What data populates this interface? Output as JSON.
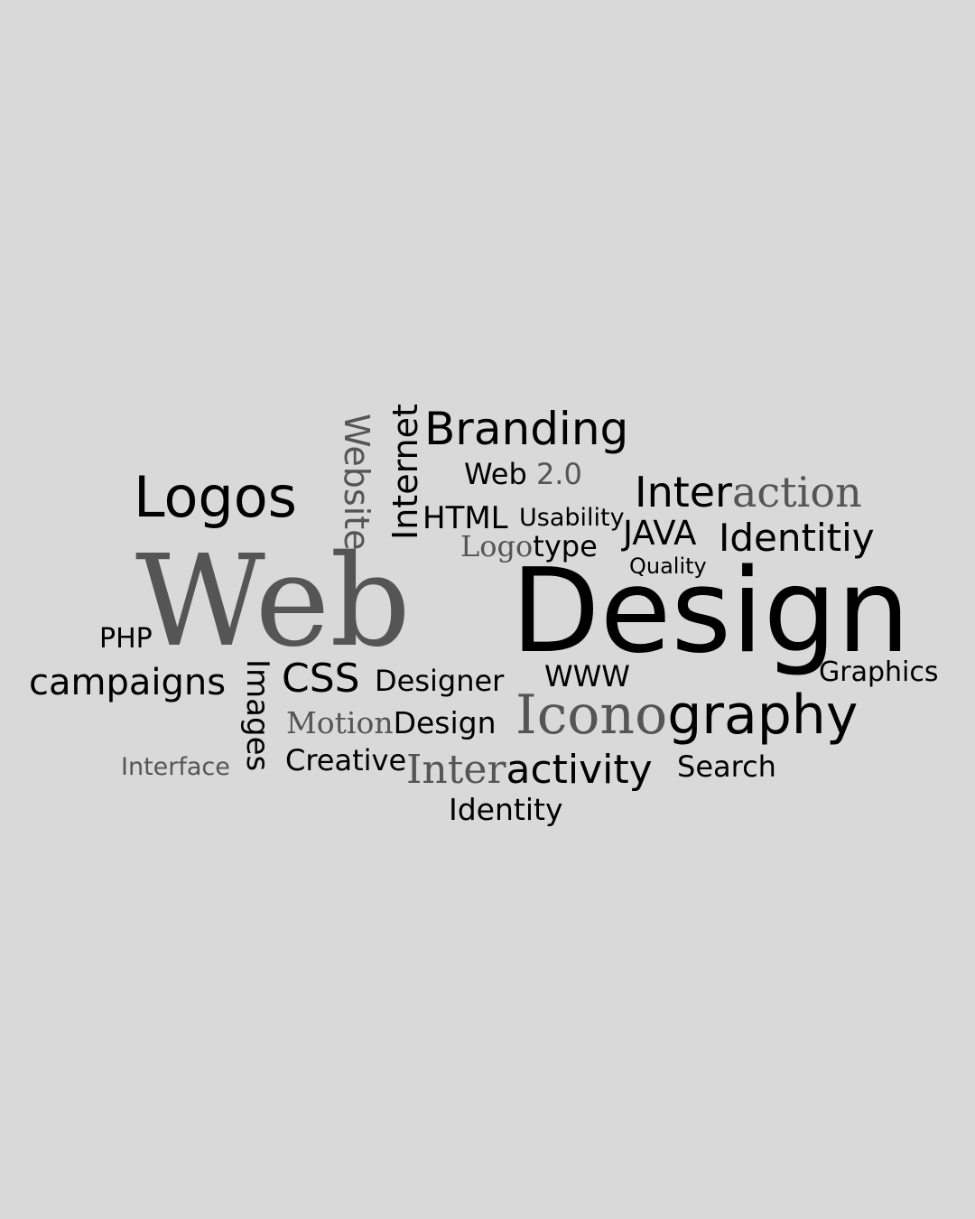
{
  "words": {
    "branding": "Branding",
    "web20_a": "Web",
    "web20_b": "2.0",
    "logos": "Logos",
    "website": "Website",
    "internet": "Internet",
    "interaction_a": "Inter",
    "interaction_b": "action",
    "html": "HTML",
    "usability": "Usability",
    "java": "JAVA",
    "identitiy": "Identitiy",
    "logotype_a": "Logo",
    "logotype_b": "type",
    "quality": "Quality",
    "web": "Web",
    "design": "Design",
    "php": "PHP",
    "campaigns": "campaigns",
    "images": "Images",
    "css": "CSS",
    "designer": "Designer",
    "www": "WWW",
    "graphics": "Graphics",
    "motiondesign_a": "Motion",
    "motiondesign_b": "Design",
    "iconography_a": "Icono",
    "iconography_b": "graphy",
    "interface": "Interface",
    "creative": "Creative",
    "interactivity_a": "Inter",
    "interactivity_b": "activity",
    "search": "Search",
    "identity": "Identity"
  },
  "colors": {
    "background": "#d9d9d9",
    "dark_text": "#000000",
    "gray_text": "#555555"
  }
}
